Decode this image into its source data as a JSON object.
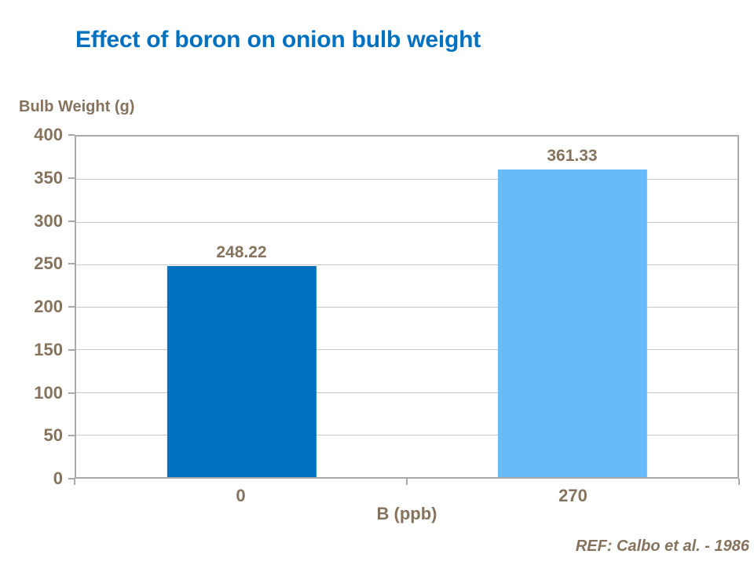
{
  "slide": {
    "title": "Effect of boron on onion bulb weight",
    "reference": "REF: Calbo et al. - 1986"
  },
  "chart_data": {
    "type": "bar",
    "title": "Effect of boron on onion bulb weight",
    "categories": [
      "0",
      "270"
    ],
    "values": [
      248.22,
      361.33
    ],
    "value_labels": [
      "248.22",
      "361.33"
    ],
    "xlabel": "B (ppb)",
    "ylabel": "Bulb Weight (g)",
    "ylim": [
      0,
      400
    ],
    "yticks": [
      0,
      50,
      100,
      150,
      200,
      250,
      300,
      350,
      400
    ],
    "grid": true,
    "legend": false,
    "bar_colors": [
      "#0070C0",
      "#66BCFA"
    ],
    "colors": {
      "title": "#0070C0",
      "axis_text": "#85735D",
      "gridline": "#C9C9C9",
      "axis_line": "#A9A9A9"
    }
  }
}
